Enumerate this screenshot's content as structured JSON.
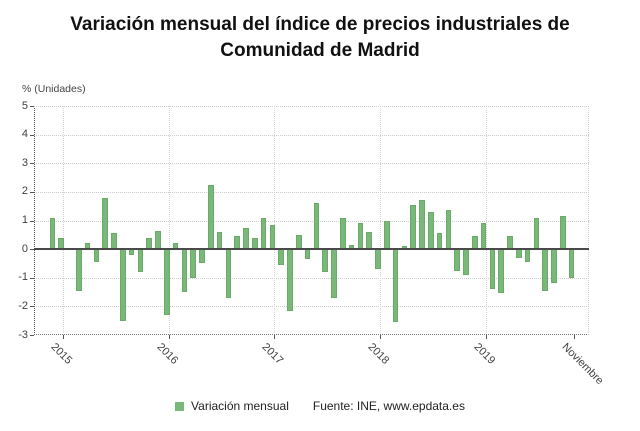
{
  "title": "Variación mensual del índice de precios industriales de Comunidad de Madrid",
  "y_axis": {
    "unit_label": "% (Unidades)",
    "ticks": [
      5,
      4,
      3,
      2,
      1,
      0,
      -1,
      -2,
      -3
    ]
  },
  "x_axis": {
    "tick_labels": [
      "2015",
      "2016",
      "2017",
      "2018",
      "2019",
      "Noviembre"
    ],
    "tick_slots": [
      1,
      13,
      25,
      37,
      49,
      59
    ],
    "gridline_on_last": false
  },
  "legend": {
    "series_label": "Variación mensual",
    "source": "Fuente: INE, www.epdata.es"
  },
  "colors": {
    "bar": "#7ab87a",
    "bar_border": "#6aab6a",
    "grid": "#cccccc",
    "axis": "#555555",
    "zero_line": "#4a4a4a",
    "text": "#404040",
    "title": "#111111"
  },
  "chart_data": {
    "type": "bar",
    "title": "Variación mensual del índice de precios industriales de Comunidad de Madrid",
    "xlabel": "",
    "ylabel": "% (Unidades)",
    "ylim": [
      -3,
      5
    ],
    "grid": true,
    "legend_position": "bottom",
    "series_name": "Variación mensual",
    "source": "Fuente: INE, www.epdata.es",
    "categories": [
      "2014-12",
      "2015-01",
      "2015-02",
      "2015-03",
      "2015-04",
      "2015-05",
      "2015-06",
      "2015-07",
      "2015-08",
      "2015-09",
      "2015-10",
      "2015-11",
      "2015-12",
      "2016-01",
      "2016-02",
      "2016-03",
      "2016-04",
      "2016-05",
      "2016-06",
      "2016-07",
      "2016-08",
      "2016-09",
      "2016-10",
      "2016-11",
      "2016-12",
      "2017-01",
      "2017-02",
      "2017-03",
      "2017-04",
      "2017-05",
      "2017-06",
      "2017-07",
      "2017-08",
      "2017-09",
      "2017-10",
      "2017-11",
      "2017-12",
      "2018-01",
      "2018-02",
      "2018-03",
      "2018-04",
      "2018-05",
      "2018-06",
      "2018-07",
      "2018-08",
      "2018-09",
      "2018-10",
      "2018-11",
      "2018-12",
      "2019-01",
      "2019-02",
      "2019-03",
      "2019-04",
      "2019-05",
      "2019-06",
      "2019-07",
      "2019-08",
      "2019-09",
      "2019-10",
      "2019-11"
    ],
    "values": [
      1.1,
      0.4,
      0.0,
      -1.45,
      0.2,
      -0.45,
      1.8,
      0.55,
      -2.5,
      -0.2,
      -0.8,
      0.4,
      0.65,
      -2.3,
      0.2,
      -1.5,
      -1.0,
      -0.5,
      2.25,
      0.6,
      -1.7,
      0.45,
      0.75,
      0.4,
      1.1,
      0.85,
      -0.55,
      -2.15,
      0.5,
      -0.35,
      1.6,
      -0.8,
      -1.7,
      1.1,
      0.15,
      0.9,
      0.6,
      -0.7,
      1.0,
      -2.55,
      0.1,
      1.55,
      1.7,
      1.3,
      0.55,
      1.35,
      -0.75,
      -0.9,
      0.45,
      0.9,
      -1.4,
      -1.55,
      0.45,
      -0.3,
      -0.45,
      1.1,
      -1.45,
      -1.2,
      1.15,
      -1.0
    ]
  }
}
